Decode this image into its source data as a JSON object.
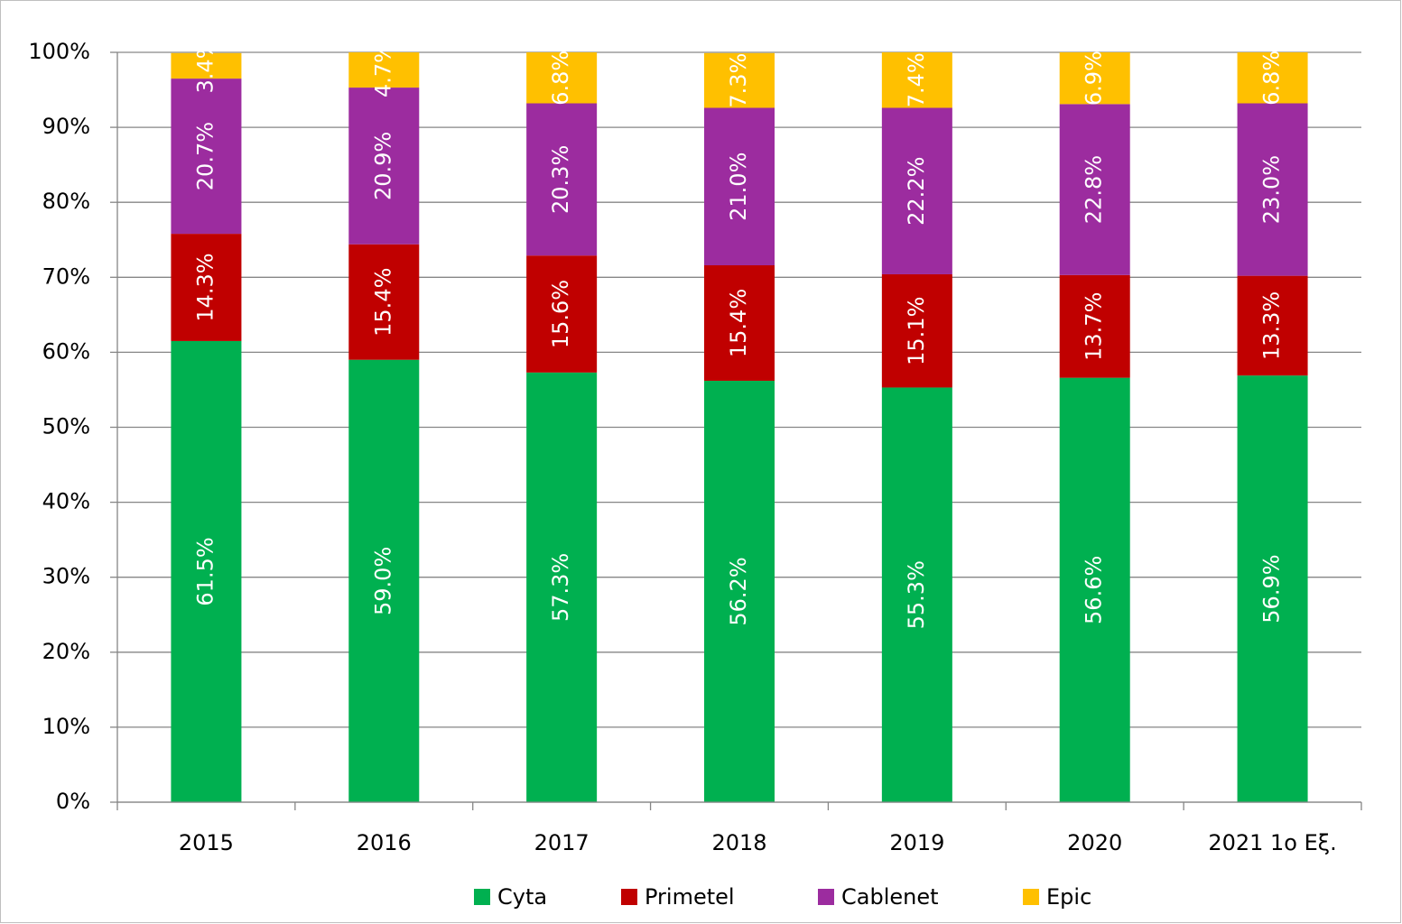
{
  "chart_data": {
    "type": "stacked_bar",
    "categories": [
      "2015",
      "2016",
      "2017",
      "2018",
      "2019",
      "2020",
      "2021 1ο Εξ."
    ],
    "series": [
      {
        "name": "Cyta",
        "color": "#00b050",
        "values": [
          61.5,
          59.0,
          57.3,
          56.2,
          55.3,
          56.6,
          56.9
        ],
        "value_labels": [
          "61.5%",
          "59.0%",
          "57.3%",
          "56.2%",
          "55.3%",
          "56.6%",
          "56.9%"
        ]
      },
      {
        "name": "Primetel",
        "color": "#c00000",
        "values": [
          14.3,
          15.4,
          15.6,
          15.4,
          15.1,
          13.7,
          13.3
        ],
        "value_labels": [
          "14.3%",
          "15.4%",
          "15.6%",
          "15.4%",
          "15.1%",
          "13.7%",
          "13.3%"
        ]
      },
      {
        "name": "Cablenet",
        "color": "#9c2c9f",
        "values": [
          20.7,
          20.9,
          20.3,
          21.0,
          22.2,
          22.8,
          23.0
        ],
        "value_labels": [
          "20.7%",
          "20.9%",
          "20.3%",
          "21.0%",
          "22.2%",
          "22.8%",
          "23.0%"
        ]
      },
      {
        "name": "Epic",
        "color": "#ffc000",
        "values": [
          3.4,
          4.7,
          6.8,
          7.3,
          7.4,
          6.9,
          6.8
        ],
        "value_labels": [
          "3.4%",
          "4.7%",
          "6.8%",
          "7.3%",
          "7.4%",
          "6.9%",
          "6.8%"
        ]
      }
    ],
    "ylim": [
      0,
      100
    ],
    "yticks": [
      {
        "value": 0,
        "label": "0%"
      },
      {
        "value": 10,
        "label": "10%"
      },
      {
        "value": 20,
        "label": "20%"
      },
      {
        "value": 30,
        "label": "30%"
      },
      {
        "value": 40,
        "label": "40%"
      },
      {
        "value": 50,
        "label": "50%"
      },
      {
        "value": 60,
        "label": "60%"
      },
      {
        "value": 70,
        "label": "70%"
      },
      {
        "value": 80,
        "label": "80%"
      },
      {
        "value": 90,
        "label": "90%"
      },
      {
        "value": 100,
        "label": "100%"
      }
    ],
    "grid": true,
    "legend": "bottom"
  }
}
